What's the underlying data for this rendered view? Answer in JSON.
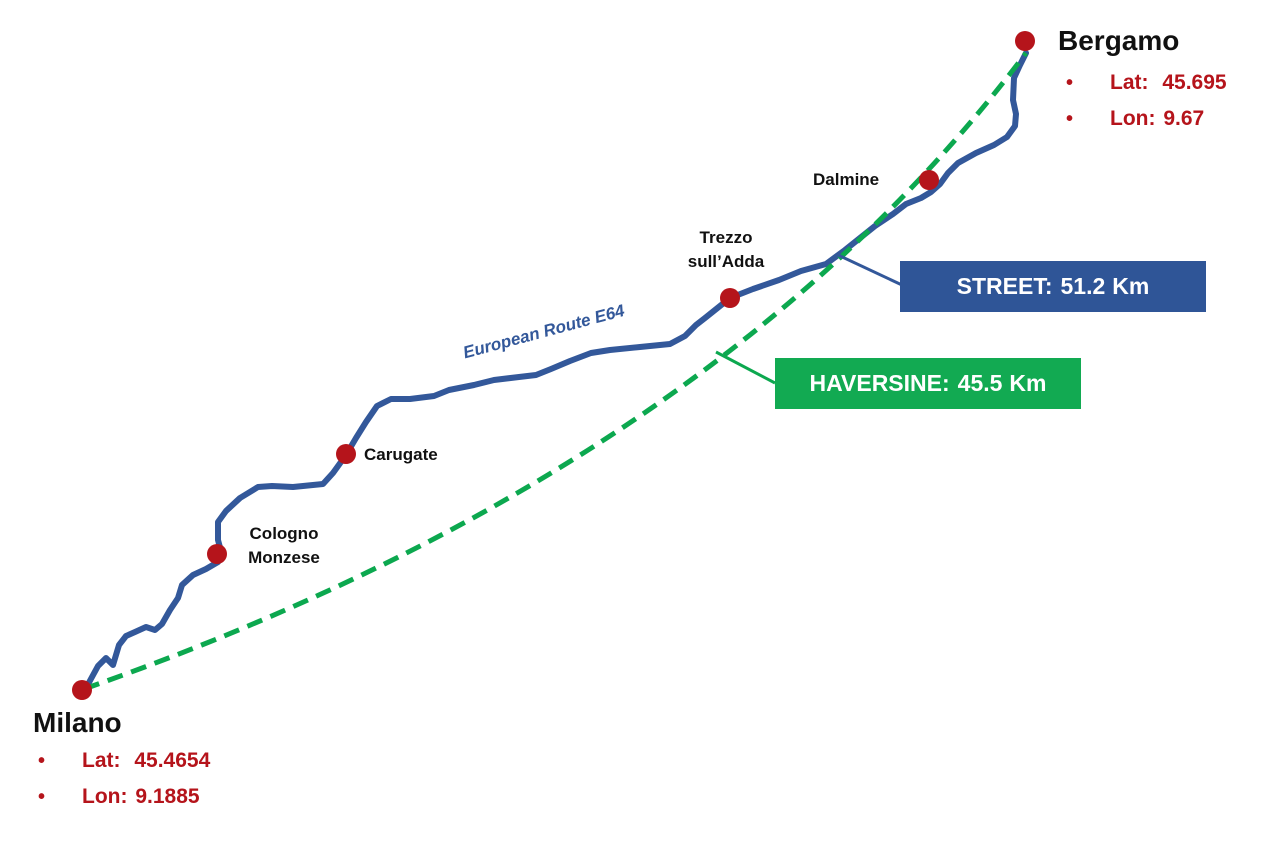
{
  "colors": {
    "route": "#33589a",
    "haversine": "#0ca84f",
    "city_dot": "#b5141b",
    "coord_text": "#b5141b",
    "street_box": "#2f5597",
    "haversine_box": "#12aa52"
  },
  "cities": {
    "milano": {
      "name": "Milano",
      "lat_label": "Lat:",
      "lat": "45.4654",
      "lon_label": "Lon:",
      "lon": "9.1885",
      "bullet": "•"
    },
    "bergamo": {
      "name": "Bergamo",
      "lat_label": "Lat:",
      "lat": "45.695",
      "lon_label": "Lon:",
      "lon": "9.67",
      "bullet": "•"
    }
  },
  "towns": {
    "cologno": {
      "line1": "Cologno",
      "line2": "Monzese"
    },
    "carugate": {
      "name": "Carugate"
    },
    "trezzo": {
      "line1": "Trezzo",
      "line2": "sull’Adda"
    },
    "dalmine": {
      "name": "Dalmine"
    }
  },
  "route": {
    "name": "European Route E64"
  },
  "distances": {
    "street": {
      "label": "STREET:",
      "value": "51.2",
      "unit": "Km"
    },
    "haversine": {
      "label": "HAVERSINE:",
      "value": "45.5",
      "unit": "Km"
    }
  }
}
